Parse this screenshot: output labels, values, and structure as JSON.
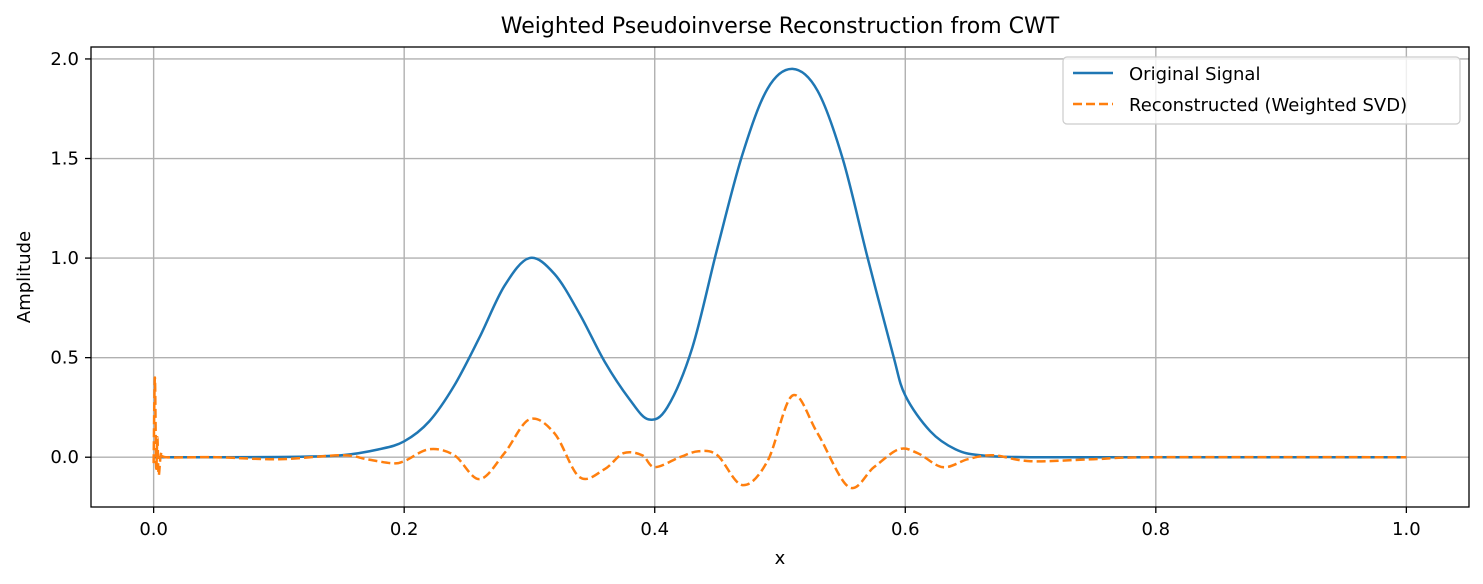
{
  "chart_data": {
    "type": "line",
    "title": "Weighted Pseudoinverse Reconstruction from CWT",
    "xlabel": "x",
    "ylabel": "Amplitude",
    "xlim": [
      -0.05,
      1.05
    ],
    "ylim": [
      -0.25,
      2.06
    ],
    "xticks": [
      0.0,
      0.2,
      0.4,
      0.6,
      0.8,
      1.0
    ],
    "xtick_labels": [
      "0.0",
      "0.2",
      "0.4",
      "0.6",
      "0.8",
      "1.0"
    ],
    "yticks": [
      0.0,
      0.5,
      1.0,
      1.5,
      2.0
    ],
    "ytick_labels": [
      "0.0",
      "0.5",
      "1.0",
      "1.5",
      "2.0"
    ],
    "grid": true,
    "legend_position": "top-right",
    "series": [
      {
        "name": "Original Signal",
        "color": "#1f77b4",
        "style": "solid",
        "x": [
          0.0,
          0.1,
          0.15,
          0.18,
          0.2,
          0.22,
          0.24,
          0.26,
          0.28,
          0.3,
          0.32,
          0.34,
          0.36,
          0.38,
          0.395,
          0.41,
          0.43,
          0.45,
          0.47,
          0.49,
          0.51,
          0.53,
          0.55,
          0.57,
          0.59,
          0.6,
          0.62,
          0.64,
          0.66,
          0.7,
          0.8,
          1.0
        ],
        "y": [
          0.0,
          0.001,
          0.01,
          0.04,
          0.08,
          0.18,
          0.36,
          0.6,
          0.86,
          1.0,
          0.92,
          0.72,
          0.48,
          0.29,
          0.19,
          0.25,
          0.55,
          1.05,
          1.52,
          1.85,
          1.95,
          1.84,
          1.5,
          1.0,
          0.52,
          0.31,
          0.13,
          0.04,
          0.01,
          0.0,
          0.0,
          0.0
        ]
      },
      {
        "name": "Reconstructed (Weighted SVD)",
        "color": "#ff7f0e",
        "style": "dashed",
        "x": [
          0.0,
          0.001,
          0.002,
          0.003,
          0.004,
          0.006,
          0.01,
          0.05,
          0.1,
          0.15,
          0.17,
          0.19,
          0.2,
          0.22,
          0.24,
          0.26,
          0.28,
          0.3,
          0.32,
          0.34,
          0.36,
          0.375,
          0.39,
          0.4,
          0.42,
          0.435,
          0.45,
          0.47,
          0.49,
          0.51,
          0.53,
          0.555,
          0.575,
          0.595,
          0.61,
          0.63,
          0.65,
          0.67,
          0.7,
          0.75,
          0.8,
          1.0
        ],
        "y": [
          -0.03,
          0.4,
          -0.05,
          0.1,
          -0.09,
          0.02,
          0.0,
          0.0,
          -0.01,
          0.01,
          -0.01,
          -0.03,
          -0.02,
          0.04,
          0.01,
          -0.11,
          0.02,
          0.19,
          0.12,
          -0.1,
          -0.06,
          0.02,
          0.01,
          -0.05,
          0.0,
          0.03,
          0.01,
          -0.14,
          -0.02,
          0.31,
          0.12,
          -0.15,
          -0.05,
          0.04,
          0.02,
          -0.05,
          -0.01,
          0.01,
          -0.02,
          -0.01,
          0.0,
          0.0
        ]
      }
    ]
  }
}
